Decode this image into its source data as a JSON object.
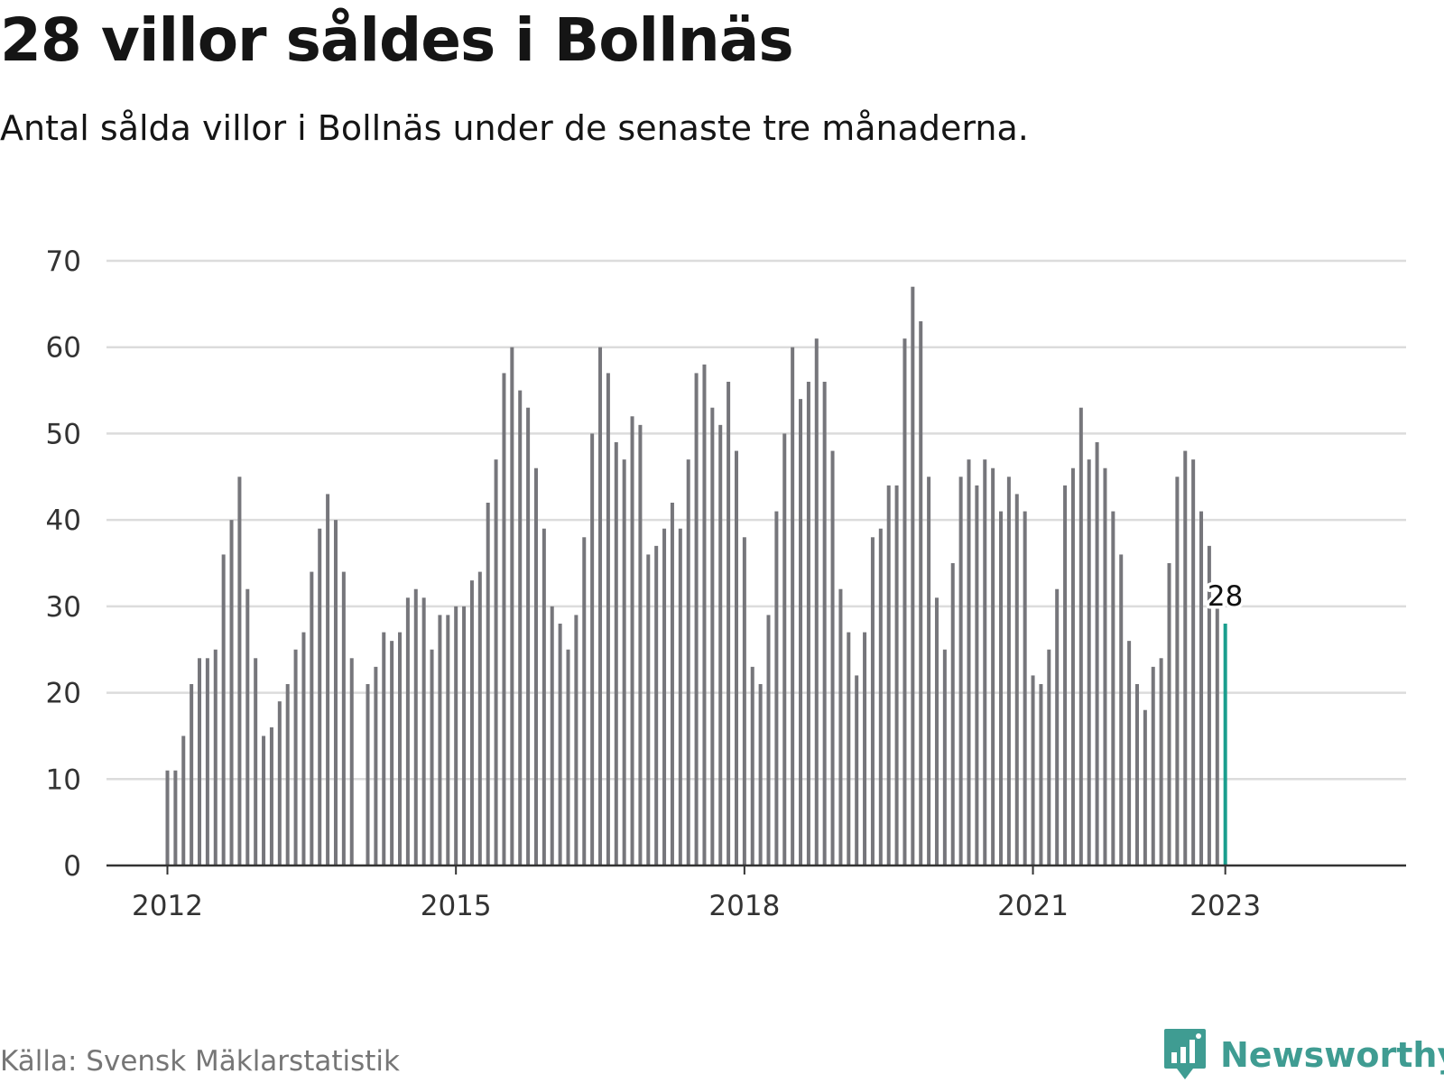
{
  "title": "28 villor såldes i Bollnäs",
  "subtitle": "Antal sålda villor i Bollnäs under de senaste tre månaderna.",
  "source": "Källa: Svensk Mäklarstatistik",
  "brand": "Newsworthy",
  "colors": {
    "bar": "#76767b",
    "highlight": "#1a9e8e",
    "grid": "#dcdcdc",
    "axis": "#333333",
    "brand": "#3f9c92"
  },
  "icons": {
    "logo": "bar-chart-speech-bubble-icon"
  },
  "chart_data": {
    "type": "bar",
    "x_start": "2012-01",
    "x_frequency": "monthly",
    "x_ticks": [
      "2012",
      "2015",
      "2018",
      "2021",
      "2023"
    ],
    "y_ticks": [
      "0",
      "10",
      "20",
      "30",
      "40",
      "50",
      "60",
      "70"
    ],
    "ylim": [
      0,
      70
    ],
    "grid": true,
    "highlight_label": "28",
    "values": [
      11,
      11,
      15,
      21,
      24,
      24,
      25,
      36,
      40,
      45,
      32,
      24,
      15,
      16,
      19,
      21,
      25,
      27,
      34,
      39,
      43,
      40,
      34,
      24,
      0,
      21,
      23,
      27,
      26,
      27,
      31,
      32,
      31,
      25,
      29,
      29,
      30,
      30,
      33,
      34,
      42,
      47,
      57,
      60,
      55,
      53,
      46,
      39,
      30,
      28,
      25,
      29,
      38,
      50,
      60,
      57,
      49,
      47,
      52,
      51,
      36,
      37,
      39,
      42,
      39,
      47,
      57,
      58,
      53,
      51,
      56,
      48,
      38,
      23,
      21,
      29,
      41,
      50,
      60,
      54,
      56,
      61,
      56,
      48,
      32,
      27,
      22,
      27,
      38,
      39,
      44,
      44,
      61,
      67,
      63,
      45,
      31,
      25,
      35,
      45,
      47,
      44,
      47,
      46,
      41,
      45,
      43,
      41,
      22,
      21,
      25,
      32,
      44,
      46,
      53,
      47,
      49,
      46,
      41,
      36,
      26,
      21,
      18,
      23,
      24,
      35,
      45,
      48,
      47,
      41,
      37,
      30,
      28
    ]
  }
}
